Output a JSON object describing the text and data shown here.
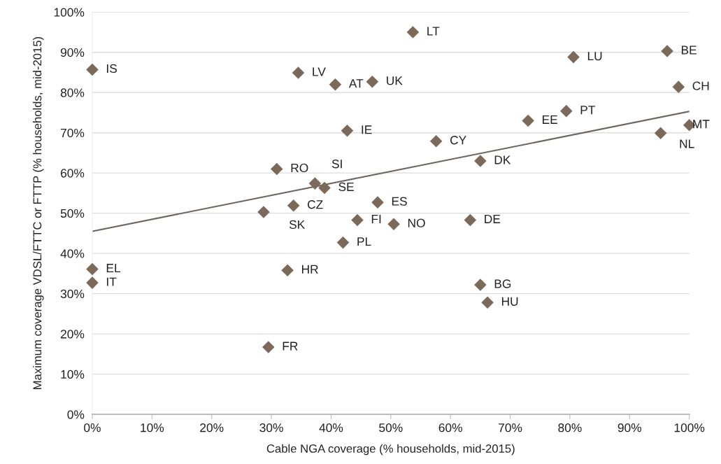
{
  "chart_data": {
    "type": "scatter",
    "xlabel": "Cable NGA coverage (% households, mid-2015)",
    "ylabel": "Maximum coverage VDSL/FTTC or FTTP (% households, mid-2015)",
    "xlim": [
      0,
      100
    ],
    "ylim": [
      0,
      100
    ],
    "xticks": [
      {
        "value": 0,
        "label": "0%"
      },
      {
        "value": 10,
        "label": "10%"
      },
      {
        "value": 20,
        "label": "20%"
      },
      {
        "value": 30,
        "label": "30%"
      },
      {
        "value": 40,
        "label": "40%"
      },
      {
        "value": 50,
        "label": "50%"
      },
      {
        "value": 60,
        "label": "60%"
      },
      {
        "value": 70,
        "label": "70%"
      },
      {
        "value": 80,
        "label": "80%"
      },
      {
        "value": 90,
        "label": "90%"
      },
      {
        "value": 100,
        "label": "100%"
      }
    ],
    "yticks": [
      {
        "value": 0,
        "label": "0%"
      },
      {
        "value": 10,
        "label": "10%"
      },
      {
        "value": 20,
        "label": "20%"
      },
      {
        "value": 30,
        "label": "30%"
      },
      {
        "value": 40,
        "label": "40%"
      },
      {
        "value": 50,
        "label": "50%"
      },
      {
        "value": 60,
        "label": "60%"
      },
      {
        "value": 70,
        "label": "70%"
      },
      {
        "value": 80,
        "label": "80%"
      },
      {
        "value": 90,
        "label": "90%"
      },
      {
        "value": 100,
        "label": "100%"
      }
    ],
    "grid": "y",
    "marker": "diamond",
    "legend": false,
    "series": [
      {
        "color": "#7b6a5a",
        "x": [
          0,
          34.5,
          40.7,
          46.9,
          42.7,
          30.9,
          37.3,
          38.9,
          33.7,
          28.7,
          47.8,
          44.4,
          50.5,
          42.0,
          0,
          0,
          32.7,
          29.5,
          53.7,
          80.6,
          96.3,
          98.2,
          79.4,
          73.0,
          100,
          95.2,
          57.6,
          65.0,
          63.3,
          65.0,
          66.2
        ],
        "values": [
          85.7,
          84.9,
          82.0,
          82.7,
          70.5,
          61.0,
          57.4,
          56.3,
          51.9,
          50.3,
          52.7,
          48.3,
          47.3,
          42.7,
          36.1,
          32.7,
          35.8,
          16.7,
          95.0,
          88.8,
          90.3,
          81.4,
          75.4,
          73.0,
          71.9,
          69.9,
          67.9,
          63.0,
          48.3,
          32.2,
          27.8
        ]
      },
      {
        "type": "line",
        "color": "#6b6662",
        "x": [
          0,
          100
        ],
        "values": [
          45.5,
          75.3
        ],
        "marker": "none",
        "line_style": "solid"
      }
    ],
    "annotations": [
      {
        "text": "IS",
        "x": 0,
        "y": 85.7
      },
      {
        "text": "LV",
        "x": 34.5,
        "y": 84.9
      },
      {
        "text": "AT",
        "x": 40.7,
        "y": 82.0
      },
      {
        "text": "UK",
        "x": 46.9,
        "y": 82.7
      },
      {
        "text": "IE",
        "x": 42.7,
        "y": 70.5
      },
      {
        "text": "RO",
        "x": 30.9,
        "y": 61.0
      },
      {
        "text": "SI",
        "x": 37.3,
        "y": 57.4
      },
      {
        "text": "SE",
        "x": 38.9,
        "y": 56.3
      },
      {
        "text": "CZ",
        "x": 33.7,
        "y": 51.9
      },
      {
        "text": "SK",
        "x": 28.7,
        "y": 50.3
      },
      {
        "text": "ES",
        "x": 47.8,
        "y": 52.7
      },
      {
        "text": "FI",
        "x": 44.4,
        "y": 48.3
      },
      {
        "text": "NO",
        "x": 50.5,
        "y": 47.3
      },
      {
        "text": "PL",
        "x": 42.0,
        "y": 42.7
      },
      {
        "text": "EL",
        "x": 0,
        "y": 36.1
      },
      {
        "text": "IT",
        "x": 0,
        "y": 32.7
      },
      {
        "text": "HR",
        "x": 32.7,
        "y": 35.8
      },
      {
        "text": "FR",
        "x": 29.5,
        "y": 16.7
      },
      {
        "text": "LT",
        "x": 53.7,
        "y": 95.0
      },
      {
        "text": "LU",
        "x": 80.6,
        "y": 88.8
      },
      {
        "text": "BE",
        "x": 96.3,
        "y": 90.3
      },
      {
        "text": "CH",
        "x": 98.2,
        "y": 81.4
      },
      {
        "text": "PT",
        "x": 79.4,
        "y": 75.4
      },
      {
        "text": "EE",
        "x": 73.0,
        "y": 73.0
      },
      {
        "text": "MT",
        "x": 100,
        "y": 71.9
      },
      {
        "text": "NL",
        "x": 95.2,
        "y": 69.9
      },
      {
        "text": "CY",
        "x": 57.6,
        "y": 67.9
      },
      {
        "text": "DK",
        "x": 65.0,
        "y": 63.0
      },
      {
        "text": "DE",
        "x": 63.3,
        "y": 48.3
      },
      {
        "text": "BG",
        "x": 65.0,
        "y": 32.2
      },
      {
        "text": "HU",
        "x": 66.2,
        "y": 27.8
      }
    ]
  }
}
